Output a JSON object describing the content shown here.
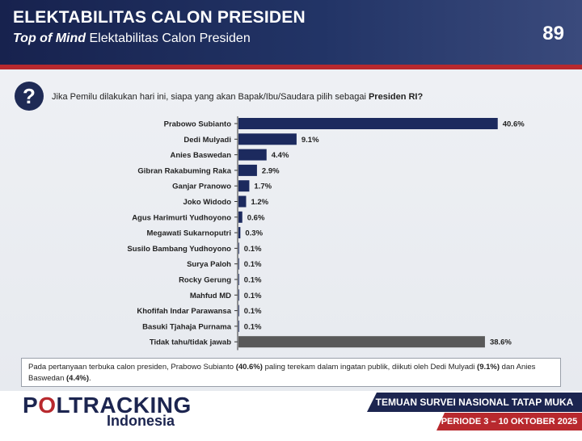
{
  "header": {
    "title": "ELEKTABILITAS CALON PRESIDEN",
    "subtitle_italic": "Top of Mind",
    "subtitle_rest": " Elektabilitas Calon Presiden",
    "page_number": "89"
  },
  "question": {
    "icon": "question-mark-icon",
    "text": "Jika Pemilu dilakukan hari ini, siapa yang akan Bapak/Ibu/Saudara pilih sebagai ",
    "bold_text": "Presiden RI?"
  },
  "summary": {
    "part1": "Pada pertanyaan terbuka calon presiden, Prabowo Subianto ",
    "bold1": "(40.6%)",
    "part2": " paling terekam dalam ingatan publik, diikuti oleh Dedi Mulyadi ",
    "bold2": "(9.1%)",
    "part3": " dan Anies Baswedan ",
    "bold3": "(4.4%)",
    "part4": "."
  },
  "footer": {
    "logo_p": "P",
    "logo_o": "O",
    "logo_rest": "LTRACKING",
    "logo_sub": "Indonesia",
    "banner_top": "TEMUAN SURVEI NASIONAL TATAP MUKA",
    "banner_bottom": "PERIODE 3 – 10 OKTOBER 2025"
  },
  "colors": {
    "bar": "#1c2a5e",
    "bar_undecided": "#595959",
    "header_bg": "#1c2a5e",
    "accent_red": "#b8292e"
  },
  "chart_data": {
    "type": "bar",
    "orientation": "horizontal",
    "categories": [
      "Prabowo Subianto",
      "Dedi Mulyadi",
      "Anies Baswedan",
      "Gibran Rakabuming Raka",
      "Ganjar Pranowo",
      "Joko Widodo",
      "Agus Harimurti Yudhoyono",
      "Megawati Sukarnoputri",
      "Susilo Bambang Yudhoyono",
      "Surya Paloh",
      "Rocky Gerung",
      "Mahfud MD",
      "Khofifah Indar Parawansa",
      "Basuki Tjahaja Purnama",
      "Tidak tahu/tidak jawab"
    ],
    "values": [
      40.6,
      9.1,
      4.4,
      2.9,
      1.7,
      1.2,
      0.6,
      0.3,
      0.1,
      0.1,
      0.1,
      0.1,
      0.1,
      0.1,
      38.6
    ],
    "value_labels": [
      "40.6%",
      "9.1%",
      "4.4%",
      "2.9%",
      "1.7%",
      "1.2%",
      "0.6%",
      "0.3%",
      "0.1%",
      "0.1%",
      "0.1%",
      "0.1%",
      "0.1%",
      "0.1%",
      "38.6%"
    ],
    "highlight": {
      "Tidak tahu/tidak jawab": "#595959"
    },
    "grid": false,
    "legend": "none"
  }
}
